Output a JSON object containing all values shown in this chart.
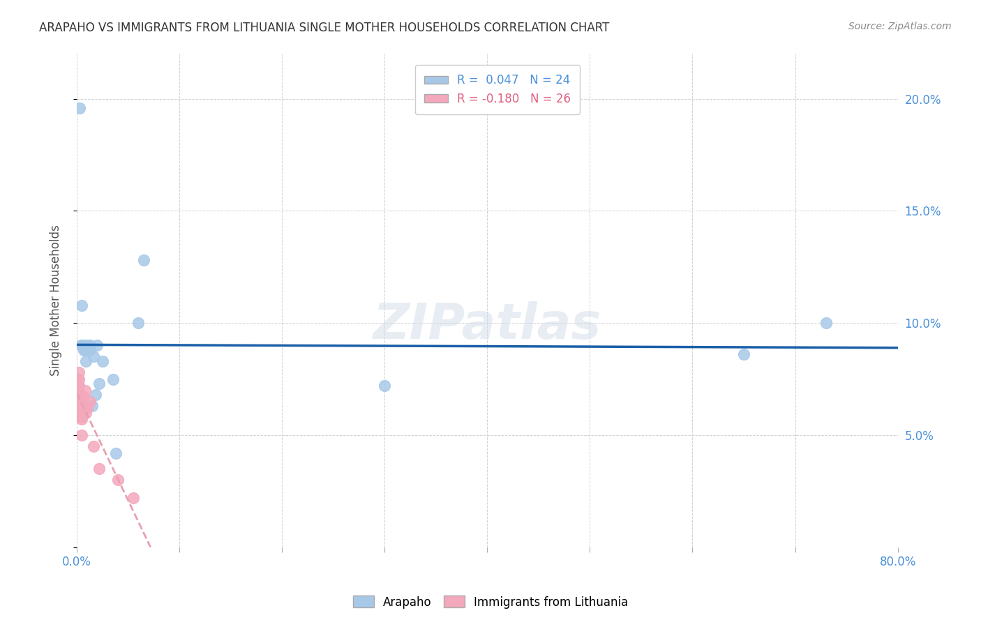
{
  "title": "ARAPAHO VS IMMIGRANTS FROM LITHUANIA SINGLE MOTHER HOUSEHOLDS CORRELATION CHART",
  "source": "Source: ZipAtlas.com",
  "ylabel": "Single Mother Households",
  "xlim": [
    0,
    0.8
  ],
  "ylim": [
    0,
    0.22
  ],
  "yticks": [
    0.0,
    0.05,
    0.1,
    0.15,
    0.2
  ],
  "xticks": [
    0.0,
    0.1,
    0.2,
    0.3,
    0.4,
    0.5,
    0.6,
    0.7,
    0.8
  ],
  "legend1_r": " 0.047",
  "legend1_n": "24",
  "legend2_r": "-0.180",
  "legend2_n": "26",
  "arapaho_color": "#a8c8e8",
  "lithuania_color": "#f4a8bc",
  "arapaho_line_color": "#1a5fa8",
  "lithuania_line_color": "#e8a0b0",
  "right_axis_color": "#4a90d9",
  "arapaho_x": [
    0.003,
    0.004,
    0.005,
    0.006,
    0.007,
    0.008,
    0.009,
    0.01,
    0.011,
    0.012,
    0.013,
    0.015,
    0.016,
    0.018,
    0.02,
    0.022,
    0.025,
    0.035,
    0.038,
    0.06,
    0.065,
    0.3,
    0.65,
    0.73
  ],
  "arapaho_y": [
    0.196,
    0.09,
    0.108,
    0.09,
    0.088,
    0.088,
    0.083,
    0.09,
    0.088,
    0.088,
    0.09,
    0.063,
    0.085,
    0.068,
    0.09,
    0.073,
    0.083,
    0.075,
    0.042,
    0.1,
    0.128,
    0.072,
    0.086,
    0.1
  ],
  "lithuania_x": [
    0.001,
    0.001,
    0.001,
    0.002,
    0.002,
    0.002,
    0.002,
    0.003,
    0.003,
    0.003,
    0.003,
    0.004,
    0.004,
    0.005,
    0.005,
    0.005,
    0.006,
    0.007,
    0.008,
    0.009,
    0.01,
    0.013,
    0.016,
    0.022,
    0.04,
    0.055
  ],
  "lithuania_y": [
    0.075,
    0.073,
    0.07,
    0.078,
    0.075,
    0.072,
    0.068,
    0.065,
    0.062,
    0.06,
    0.058,
    0.063,
    0.058,
    0.06,
    0.057,
    0.05,
    0.065,
    0.067,
    0.07,
    0.06,
    0.062,
    0.065,
    0.045,
    0.035,
    0.03,
    0.022
  ]
}
